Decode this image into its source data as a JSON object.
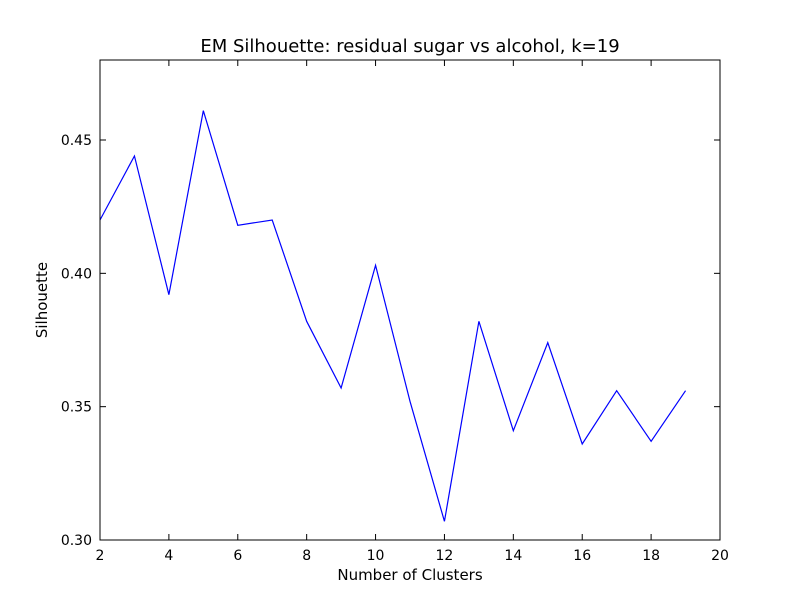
{
  "chart_data": {
    "type": "line",
    "title": "EM Silhouette: residual sugar vs alcohol, k=19",
    "xlabel": "Number of Clusters",
    "ylabel": "Silhouette",
    "xlim": [
      2,
      20
    ],
    "ylim": [
      0.3,
      0.48
    ],
    "xticks": [
      2,
      4,
      6,
      8,
      10,
      12,
      14,
      16,
      18,
      20
    ],
    "yticks": [
      0.3,
      0.35,
      0.4,
      0.45
    ],
    "xtick_labels": [
      "2",
      "4",
      "6",
      "8",
      "10",
      "12",
      "14",
      "16",
      "18",
      "20"
    ],
    "ytick_labels": [
      "0.30",
      "0.35",
      "0.40",
      "0.45"
    ],
    "grid": false,
    "series": [
      {
        "color": "#0000ff",
        "x": [
          2,
          3,
          4,
          5,
          6,
          7,
          8,
          9,
          10,
          11,
          12,
          13,
          14,
          15,
          16,
          17,
          18,
          19
        ],
        "y": [
          0.42,
          0.444,
          0.392,
          0.461,
          0.418,
          0.42,
          0.382,
          0.357,
          0.403,
          0.352,
          0.307,
          0.382,
          0.341,
          0.374,
          0.336,
          0.356,
          0.337,
          0.356
        ]
      }
    ]
  }
}
